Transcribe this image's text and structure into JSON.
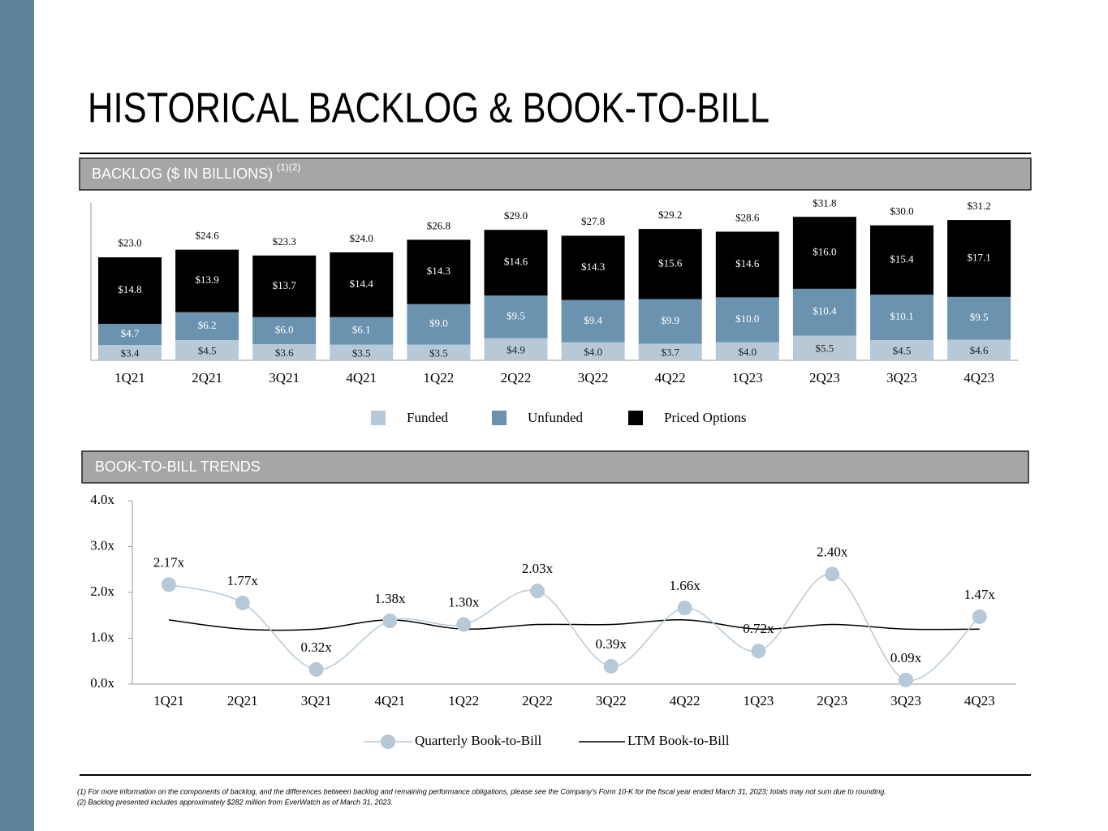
{
  "title": "HISTORICAL BACKLOG & BOOK-TO-BILL",
  "chart_data": [
    {
      "type": "stacked_bar",
      "title": "BACKLOG ($ IN BILLIONS)",
      "title_note": "(1)(2)",
      "categories": [
        "1Q21",
        "2Q21",
        "3Q21",
        "4Q21",
        "1Q22",
        "2Q22",
        "3Q22",
        "4Q22",
        "1Q23",
        "2Q23",
        "3Q23",
        "4Q23"
      ],
      "series": [
        {
          "name": "Funded",
          "color": "#b7c9d7",
          "label_color": "#222222",
          "values": [
            3.4,
            4.5,
            3.6,
            3.5,
            3.5,
            4.9,
            4.0,
            3.7,
            4.0,
            5.5,
            4.5,
            4.6
          ],
          "value_labels": [
            "$3.4",
            "$4.5",
            "$3.6",
            "$3.5",
            "$3.5",
            "$4.9",
            "$4.0",
            "$3.7",
            "$4.0",
            "$5.5",
            "$4.5",
            "$4.6"
          ]
        },
        {
          "name": "Unfunded",
          "color": "#6b93af",
          "label_color": "#ffffff",
          "values": [
            4.7,
            6.2,
            6.0,
            6.1,
            9.0,
            9.5,
            9.4,
            9.9,
            10.0,
            10.4,
            10.1,
            9.5
          ],
          "value_labels": [
            "$4.7",
            "$6.2",
            "$6.0",
            "$6.1",
            "$9.0",
            "$9.5",
            "$9.4",
            "$9.9",
            "$10.0",
            "$10.4",
            "$10.1",
            "$9.5"
          ]
        },
        {
          "name": "Priced Options",
          "color": "#000000",
          "label_color": "#ffffff",
          "values": [
            14.8,
            13.9,
            13.7,
            14.4,
            14.3,
            14.6,
            14.3,
            15.6,
            14.6,
            16.0,
            15.4,
            17.1
          ],
          "value_labels": [
            "$14.8",
            "$13.9",
            "$13.7",
            "$14.4",
            "$14.3",
            "$14.6",
            "$14.3",
            "$15.6",
            "$14.6",
            "$16.0",
            "$15.4",
            "$17.1"
          ]
        }
      ],
      "totals": [
        23.0,
        24.6,
        23.3,
        24.0,
        26.8,
        29.0,
        27.8,
        29.2,
        28.6,
        31.8,
        30.0,
        31.2
      ],
      "total_labels": [
        "$23.0",
        "$24.6",
        "$23.3",
        "$24.0",
        "$26.8",
        "$29.0",
        "$27.8",
        "$29.2",
        "$28.6",
        "$31.8",
        "$30.0",
        "$31.2"
      ],
      "ylim": [
        0,
        35
      ]
    },
    {
      "type": "line",
      "title": "BOOK-TO-BILL TRENDS",
      "smooth": true,
      "grid": false,
      "categories": [
        "1Q21",
        "2Q21",
        "3Q21",
        "4Q21",
        "1Q22",
        "2Q22",
        "3Q22",
        "4Q22",
        "1Q23",
        "2Q23",
        "3Q23",
        "4Q23"
      ],
      "series": [
        {
          "name": "Quarterly Book-to-Bill",
          "color": "#b7c9d7",
          "marker": "circle",
          "values": [
            2.17,
            1.77,
            0.32,
            1.38,
            1.3,
            2.03,
            0.39,
            1.66,
            0.72,
            2.4,
            0.09,
            1.47
          ],
          "value_labels": [
            "2.17x",
            "1.77x",
            "0.32x",
            "1.38x",
            "1.30x",
            "2.03x",
            "0.39x",
            "1.66x",
            "0.72x",
            "2.40x",
            "0.09x",
            "1.47x"
          ]
        },
        {
          "name": "LTM Book-to-Bill",
          "color": "#000000",
          "values": [
            1.4,
            1.2,
            1.2,
            1.4,
            1.2,
            1.3,
            1.3,
            1.4,
            1.2,
            1.3,
            1.2,
            1.2
          ]
        }
      ],
      "ylim": [
        0,
        4
      ],
      "yticks": [
        {
          "value": 0,
          "label": "0.0x"
        },
        {
          "value": 1,
          "label": "1.0x"
        },
        {
          "value": 2,
          "label": "2.0x"
        },
        {
          "value": 3,
          "label": "3.0x"
        },
        {
          "value": 4,
          "label": "4.0x"
        }
      ]
    }
  ],
  "footnotes": [
    "(1) For more information on the components of backlog, and the differences between backlog and remaining performance obligations, please see the Company's Form 10-K for the fiscal year ended March 31, 2023; totals may not sum due to rounding.",
    "(2) Backlog presented includes approximately $282 million from EverWatch as of March 31, 2023."
  ]
}
